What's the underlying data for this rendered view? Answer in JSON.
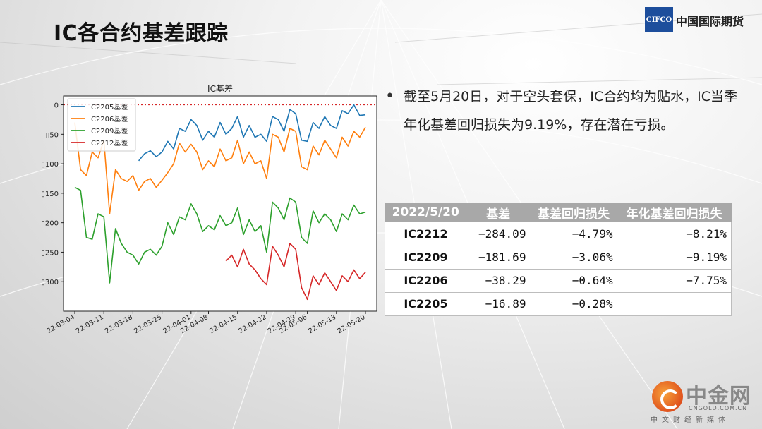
{
  "slide": {
    "title": "IC各合约基差跟踪",
    "logo_abbr": "CIFCO",
    "logo_name": "中国国际期货"
  },
  "bullet": {
    "text": "截至5月20日，对于空头套保，IC合约均为贴水，IC当季年化基差回归损失为9.19%，存在潜在亏损。"
  },
  "table": {
    "headers": [
      "2022/5/20",
      "基差",
      "基差回归损失",
      "年化基差回归损失"
    ],
    "rows": [
      [
        "IC2212",
        "−284.09",
        "−4.79%",
        "−8.21%"
      ],
      [
        "IC2209",
        "−181.69",
        "−3.06%",
        "−9.19%"
      ],
      [
        "IC2206",
        "−38.29",
        "−0.64%",
        "−7.75%"
      ],
      [
        "IC2205",
        "−16.89",
        "−0.28%",
        ""
      ]
    ]
  },
  "watermark": {
    "cn": "中金网",
    "en": "CNGOLD.COM.CN",
    "sub": "中文财经新媒体"
  },
  "chart_data": {
    "type": "line",
    "title": "IC基差",
    "xlabel": "",
    "ylabel": "",
    "ylim": [
      -350,
      15
    ],
    "yticks": [
      0,
      -50,
      -100,
      -150,
      -200,
      -250,
      -300
    ],
    "ytick_labels": [
      "0",
      "▯50",
      "▯100",
      "▯150",
      "▯200",
      "▯250",
      "▯300"
    ],
    "xtick_labels": [
      "22-03-04",
      "22-03-11",
      "22-03-18",
      "22-03-25",
      "22-04-01",
      "22-04-08",
      "22-04-15",
      "22-04-22",
      "22-04-29",
      "22-05-06",
      "22-05-13",
      "22-05-20"
    ],
    "x": [
      "03-04",
      "03-07",
      "03-08",
      "03-09",
      "03-10",
      "03-11",
      "03-14",
      "03-15",
      "03-16",
      "03-17",
      "03-18",
      "03-21",
      "03-22",
      "03-23",
      "03-24",
      "03-25",
      "03-28",
      "03-29",
      "03-30",
      "03-31",
      "04-01",
      "04-06",
      "04-07",
      "04-08",
      "04-11",
      "04-12",
      "04-13",
      "04-14",
      "04-15",
      "04-18",
      "04-19",
      "04-20",
      "04-21",
      "04-22",
      "04-25",
      "04-26",
      "04-27",
      "04-28",
      "04-29",
      "05-05",
      "05-06",
      "05-09",
      "05-10",
      "05-11",
      "05-12",
      "05-13",
      "05-16",
      "05-17",
      "05-18",
      "05-19",
      "05-20"
    ],
    "series": [
      {
        "name": "IC2205基差",
        "color": "#1f77b4",
        "values": [
          null,
          null,
          null,
          null,
          null,
          null,
          null,
          null,
          null,
          null,
          null,
          -95,
          -83,
          -78,
          -88,
          -80,
          -62,
          -75,
          -40,
          -45,
          -25,
          -35,
          -60,
          -45,
          -55,
          -30,
          -50,
          -40,
          -20,
          -55,
          -35,
          -55,
          -50,
          -62,
          -20,
          -25,
          -45,
          -8,
          -15,
          -60,
          -62,
          -30,
          -40,
          -20,
          -35,
          -40,
          -10,
          -15,
          0,
          -18,
          -17
        ]
      },
      {
        "name": "IC2206基差",
        "color": "#ff7f0e",
        "values": [
          -30,
          -110,
          -120,
          -80,
          -90,
          -60,
          -185,
          -110,
          -125,
          -130,
          -120,
          -145,
          -130,
          -125,
          -140,
          -128,
          -115,
          -100,
          -65,
          -80,
          -67,
          -80,
          -110,
          -95,
          -105,
          -75,
          -95,
          -90,
          -60,
          -100,
          -80,
          -100,
          -95,
          -125,
          -50,
          -55,
          -80,
          -40,
          -45,
          -105,
          -110,
          -70,
          -85,
          -60,
          -75,
          -90,
          -55,
          -70,
          -45,
          -55,
          -38
        ]
      },
      {
        "name": "IC2209基差",
        "color": "#2ca02c",
        "values": [
          -140,
          -145,
          -225,
          -228,
          -185,
          -190,
          -302,
          -210,
          -235,
          -250,
          -255,
          -270,
          -250,
          -245,
          -255,
          -240,
          -200,
          -220,
          -190,
          -195,
          -168,
          -185,
          -215,
          -205,
          -212,
          -188,
          -205,
          -200,
          -175,
          -220,
          -195,
          -215,
          -205,
          -250,
          -165,
          -175,
          -195,
          -158,
          -165,
          -225,
          -235,
          -180,
          -200,
          -185,
          -195,
          -215,
          -185,
          -195,
          -170,
          -185,
          -182
        ]
      },
      {
        "name": "IC2212基差",
        "color": "#d62728",
        "values": [
          null,
          null,
          null,
          null,
          null,
          null,
          null,
          null,
          null,
          null,
          null,
          null,
          null,
          null,
          null,
          null,
          null,
          null,
          null,
          null,
          null,
          null,
          null,
          null,
          null,
          null,
          -265,
          -255,
          -275,
          -245,
          -270,
          -280,
          -295,
          -305,
          -240,
          -255,
          -275,
          -235,
          -245,
          -310,
          -330,
          -290,
          -305,
          -285,
          -300,
          -315,
          -290,
          -300,
          -280,
          -295,
          -284
        ]
      }
    ],
    "legend_position": "upper-left",
    "reference_line": {
      "y": 0,
      "style": "dotted",
      "color": "#d62728"
    }
  }
}
